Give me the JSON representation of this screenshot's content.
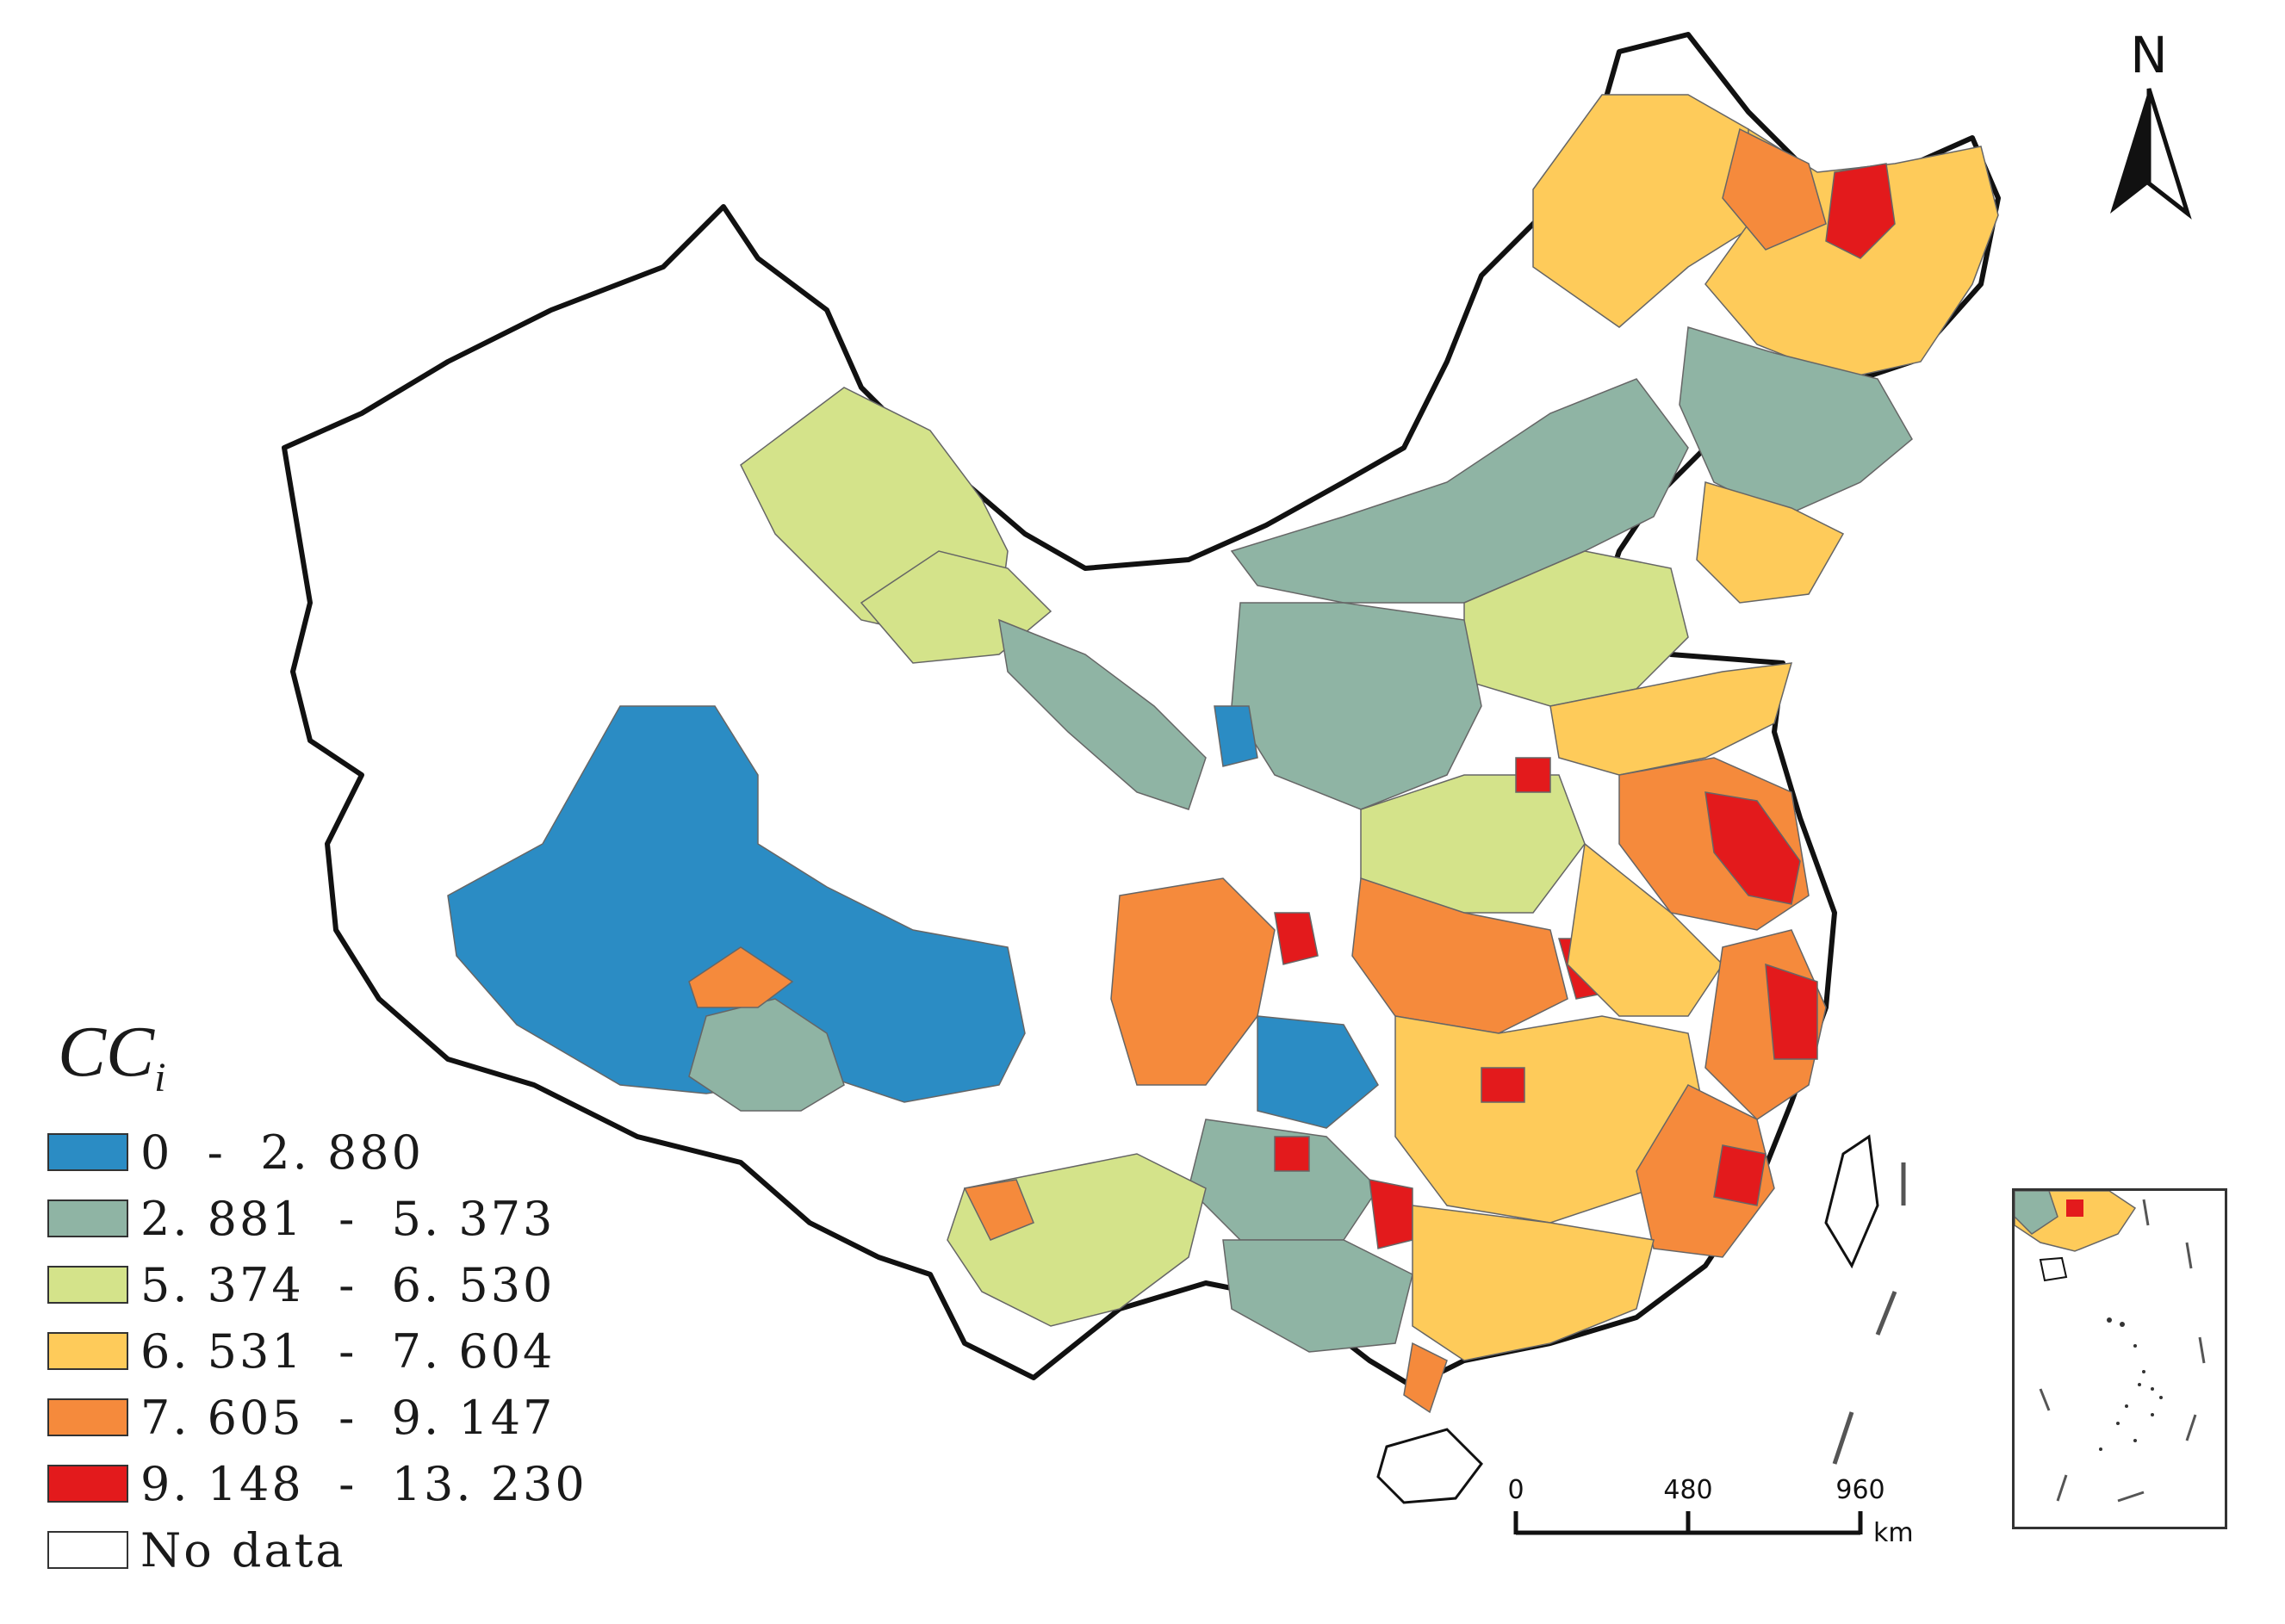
{
  "legend": {
    "title_main": "CC",
    "title_sub": "i",
    "classes": [
      {
        "label": "0  -  2. 880",
        "color": "#2b8cc4"
      },
      {
        "label": "2. 881  -  5. 373",
        "color": "#8fb4a4"
      },
      {
        "label": "5. 374  -  6. 530",
        "color": "#d4e38a"
      },
      {
        "label": "6. 531  -  7. 604",
        "color": "#fecb5a"
      },
      {
        "label": "7. 605  -  9. 147",
        "color": "#f58a3c"
      },
      {
        "label": "9. 148  -  13. 230",
        "color": "#e31a1c"
      },
      {
        "label": "No data",
        "color": "#ffffff"
      }
    ]
  },
  "north_arrow": {
    "label": "N"
  },
  "scale_bar": {
    "ticks": [
      "0",
      "480",
      "960"
    ],
    "unit": "km"
  }
}
